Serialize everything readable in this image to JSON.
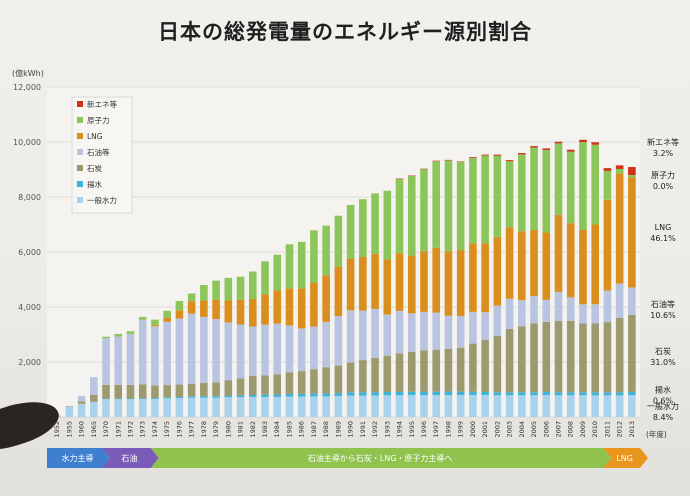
{
  "chart_data": {
    "type": "bar",
    "stacked": true,
    "title": "日本の総発電量のエネルギー源別割合",
    "ylabel": "(億kWh)",
    "xlabel": "(年度)",
    "ylim": [
      0,
      12000
    ],
    "yticks": [
      "0",
      "2,000",
      "4,000",
      "6,000",
      "8,000",
      "10,000",
      "12,000"
    ],
    "ytick_values": [
      0,
      2000,
      4000,
      6000,
      8000,
      10000,
      12000
    ],
    "categories": [
      "1952",
      "1955",
      "1960",
      "1965",
      "1970",
      "1971",
      "1972",
      "1973",
      "1974",
      "1975",
      "1976",
      "1977",
      "1978",
      "1979",
      "1980",
      "1981",
      "1982",
      "1983",
      "1984",
      "1985",
      "1986",
      "1987",
      "1988",
      "1989",
      "1990",
      "1991",
      "1992",
      "1993",
      "1994",
      "1995",
      "1996",
      "1997",
      "1998",
      "1999",
      "2000",
      "2001",
      "2002",
      "2003",
      "2004",
      "2005",
      "2006",
      "2007",
      "2008",
      "2009",
      "2010",
      "2011",
      "2012",
      "2013"
    ],
    "series": [
      {
        "name": "一般水力",
        "color": "#a9d3ec",
        "values": [
          45,
          380,
          480,
          550,
          650,
          650,
          650,
          650,
          660,
          680,
          690,
          700,
          700,
          700,
          720,
          720,
          730,
          730,
          730,
          740,
          740,
          750,
          750,
          760,
          780,
          780,
          780,
          790,
          790,
          800,
          800,
          800,
          800,
          800,
          800,
          800,
          790,
          790,
          790,
          790,
          800,
          790,
          790,
          790,
          790,
          790,
          790,
          800
        ]
      },
      {
        "name": "揚水",
        "color": "#3fb3d8",
        "values": [
          0,
          0,
          0,
          0,
          20,
          20,
          20,
          30,
          30,
          40,
          40,
          50,
          60,
          60,
          60,
          70,
          70,
          80,
          90,
          100,
          100,
          100,
          110,
          110,
          120,
          120,
          120,
          120,
          120,
          120,
          120,
          120,
          120,
          120,
          120,
          110,
          110,
          110,
          110,
          110,
          110,
          110,
          110,
          110,
          110,
          110,
          110,
          110
        ]
      },
      {
        "name": "石炭",
        "color": "#9e9a6f",
        "values": [
          5,
          10,
          90,
          250,
          500,
          500,
          500,
          510,
          460,
          440,
          450,
          460,
          480,
          500,
          560,
          620,
          690,
          700,
          730,
          790,
          830,
          890,
          950,
          1000,
          1080,
          1170,
          1250,
          1320,
          1400,
          1450,
          1500,
          1530,
          1560,
          1600,
          1750,
          1900,
          2050,
          2300,
          2400,
          2500,
          2550,
          2600,
          2600,
          2500,
          2500,
          2550,
          2700,
          2800
        ]
      },
      {
        "name": "石油等",
        "color": "#b9c4e0",
        "values": [
          0,
          0,
          200,
          650,
          1700,
          1750,
          1850,
          2350,
          2150,
          2300,
          2400,
          2550,
          2400,
          2300,
          2100,
          1950,
          1800,
          1850,
          1850,
          1700,
          1550,
          1550,
          1650,
          1800,
          1900,
          1800,
          1780,
          1500,
          1550,
          1400,
          1400,
          1350,
          1200,
          1150,
          1150,
          1000,
          1100,
          1100,
          950,
          1000,
          800,
          1050,
          850,
          700,
          700,
          1150,
          1250,
          1000
        ]
      },
      {
        "name": "LNG",
        "color": "#d98e1e",
        "values": [
          0,
          0,
          0,
          0,
          0,
          0,
          0,
          0,
          50,
          150,
          300,
          450,
          600,
          700,
          800,
          900,
          1000,
          1100,
          1200,
          1350,
          1450,
          1600,
          1700,
          1800,
          1880,
          1950,
          2000,
          2000,
          2100,
          2100,
          2200,
          2350,
          2350,
          2400,
          2500,
          2500,
          2500,
          2600,
          2500,
          2400,
          2450,
          2800,
          2700,
          2700,
          2900,
          3300,
          4000,
          4000
        ]
      },
      {
        "name": "原子力",
        "color": "#8cc65a",
        "values": [
          0,
          0,
          0,
          0,
          50,
          100,
          100,
          100,
          190,
          250,
          340,
          280,
          560,
          700,
          820,
          840,
          1000,
          1200,
          1300,
          1600,
          1700,
          1900,
          1800,
          1850,
          1950,
          2100,
          2200,
          2500,
          2700,
          2900,
          3000,
          3150,
          3300,
          3200,
          3100,
          3200,
          2950,
          2400,
          2800,
          3000,
          3000,
          2600,
          2600,
          3200,
          2900,
          1050,
          170,
          90
        ]
      },
      {
        "name": "新エネ等",
        "color": "#d0311c",
        "values": [
          0,
          0,
          0,
          0,
          0,
          0,
          0,
          0,
          0,
          0,
          0,
          0,
          0,
          0,
          0,
          0,
          0,
          0,
          0,
          0,
          0,
          0,
          0,
          0,
          0,
          0,
          0,
          0,
          10,
          10,
          10,
          20,
          20,
          20,
          30,
          30,
          40,
          40,
          50,
          50,
          60,
          60,
          70,
          80,
          90,
          100,
          130,
          290
        ]
      }
    ],
    "right_labels": [
      {
        "name": "新エネ等",
        "pct": "3.2%",
        "y": 9900
      },
      {
        "name": "原子力",
        "pct": "0.0%",
        "y": 8700
      },
      {
        "name": "LNG",
        "pct": "46.1%",
        "y": 6800
      },
      {
        "name": "石油等",
        "pct": "10.6%",
        "y": 4000
      },
      {
        "name": "石炭",
        "pct": "31.0%",
        "y": 2300
      },
      {
        "name": "揚水",
        "pct": "0.6%",
        "y": 900
      },
      {
        "name": "一般水力",
        "pct": "8.4%",
        "y": 300
      }
    ],
    "legend_position": "top-left",
    "eras": [
      {
        "label": "水力主導",
        "color": "#3f7fcf",
        "from": "1952",
        "to": "1965"
      },
      {
        "label": "石油",
        "color": "#7a5bb8",
        "from": "1970",
        "to": "1973"
      },
      {
        "label": "石油主導から石炭・LNG・原子力主導へ",
        "color": "#8fc34e",
        "from": "1974",
        "to": "2010"
      },
      {
        "label": "LNG",
        "color": "#e8961e",
        "from": "2011",
        "to": "2013"
      }
    ]
  }
}
